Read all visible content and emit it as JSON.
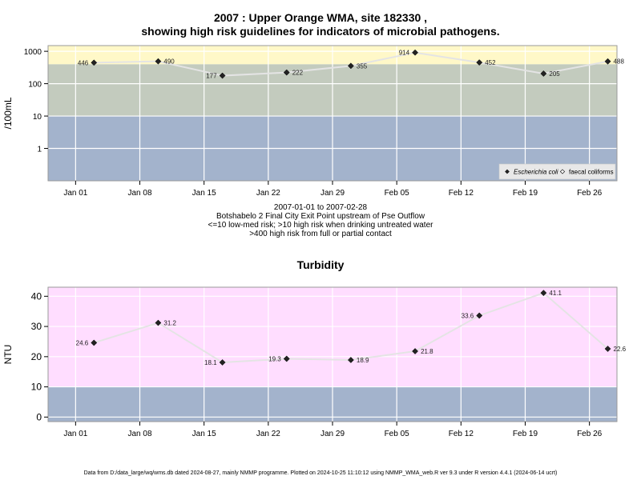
{
  "chart_data": [
    {
      "type": "line",
      "title_line1": "2007 : Upper Orange WMA, site 182330 ,",
      "title_line2": "showing high risk guidelines for indicators of microbial pathogens.",
      "ylabel": "/100mL",
      "yscale": "log",
      "ylim": [
        0.1,
        1500
      ],
      "yticks": [
        1,
        10,
        100,
        1000
      ],
      "ytick_labels": [
        "1",
        "10",
        "100",
        "1000"
      ],
      "xlim": [
        "2006-12-29",
        "2007-03-01"
      ],
      "xticks": [
        "2007-01-01",
        "2007-01-08",
        "2007-01-15",
        "2007-01-22",
        "2007-01-29",
        "2007-02-05",
        "2007-02-12",
        "2007-02-19",
        "2007-02-26"
      ],
      "xtick_labels": [
        "Jan 01",
        "Jan 08",
        "Jan 15",
        "Jan 22",
        "Jan 29",
        "Feb 05",
        "Feb 12",
        "Feb 19",
        "Feb 26"
      ],
      "bands": [
        {
          "from": 0.1,
          "to": 10,
          "color": "#a3b3cc"
        },
        {
          "from": 10,
          "to": 400,
          "color": "#c3cbbe"
        },
        {
          "from": 400,
          "to": 1500,
          "color": "#fff8c8"
        }
      ],
      "legend_position": "bottom-right",
      "series": [
        {
          "name": "Escherichia coli",
          "marker": "filled-diamond",
          "line_color": "#e4e4e4",
          "x": [
            "2007-01-03",
            "2007-01-10",
            "2007-01-17",
            "2007-01-24",
            "2007-01-31",
            "2007-02-07",
            "2007-02-14",
            "2007-02-21",
            "2007-02-28"
          ],
          "values": [
            446,
            490,
            177,
            222,
            355,
            914,
            452,
            205,
            488
          ],
          "labels": [
            "446",
            "490",
            "177",
            "222",
            "355",
            "914",
            "452",
            "205",
            "488"
          ],
          "label_side": [
            "left",
            "right",
            "left",
            "right",
            "right",
            "left",
            "right",
            "right",
            "right"
          ]
        },
        {
          "name": "faecal coliforms",
          "marker": "open-diamond",
          "x": [],
          "values": []
        }
      ]
    },
    {
      "type": "line",
      "title": "Turbidity",
      "ylabel": "NTU",
      "yscale": "linear",
      "ylim": [
        -1.5,
        43
      ],
      "yticks": [
        0,
        10,
        20,
        30,
        40
      ],
      "ytick_labels": [
        "0",
        "10",
        "20",
        "30",
        "40"
      ],
      "xlim": [
        "2006-12-29",
        "2007-03-01"
      ],
      "xticks": [
        "2007-01-01",
        "2007-01-08",
        "2007-01-15",
        "2007-01-22",
        "2007-01-29",
        "2007-02-05",
        "2007-02-12",
        "2007-02-19",
        "2007-02-26"
      ],
      "xtick_labels": [
        "Jan 01",
        "Jan 08",
        "Jan 15",
        "Jan 22",
        "Jan 29",
        "Feb 05",
        "Feb 12",
        "Feb 19",
        "Feb 26"
      ],
      "bands": [
        {
          "from": -1.5,
          "to": 10,
          "color": "#a3b3cc"
        },
        {
          "from": 10,
          "to": 43,
          "color": "#ffddff"
        }
      ],
      "series": [
        {
          "name": "",
          "marker": "filled-diamond",
          "line_color": "#e4e4e4",
          "x": [
            "2007-01-03",
            "2007-01-10",
            "2007-01-17",
            "2007-01-24",
            "2007-01-31",
            "2007-02-07",
            "2007-02-14",
            "2007-02-21",
            "2007-02-28"
          ],
          "values": [
            24.6,
            31.2,
            18.1,
            19.3,
            18.9,
            21.8,
            33.6,
            41.1,
            22.6
          ],
          "labels": [
            "24.6",
            "31.2",
            "18.1",
            "19.3",
            "18.9",
            "21.8",
            "33.6",
            "41.1",
            "22.6"
          ],
          "label_side": [
            "left",
            "right",
            "left",
            "left",
            "right",
            "right",
            "left",
            "right",
            "right"
          ]
        }
      ]
    }
  ],
  "caption": {
    "line1": "2007-01-01 to 2007-02-28",
    "line2": "Botshabelo 2 Final City Exit Point upstream of Pse Outflow",
    "line3": "<=10 low-med risk; >10 high risk when drinking untreated water",
    "line4": ">400 high risk from full or partial contact"
  },
  "footer": "Data from D:/data_large/wq/wms.db dated 2024-08-27, mainly NMMP programme. Plotted on 2024-10-25 11:10:12 using NMMP_WMA_web.R ver 9.3 under R version 4.4.1 (2024-06-14 ucrt)"
}
